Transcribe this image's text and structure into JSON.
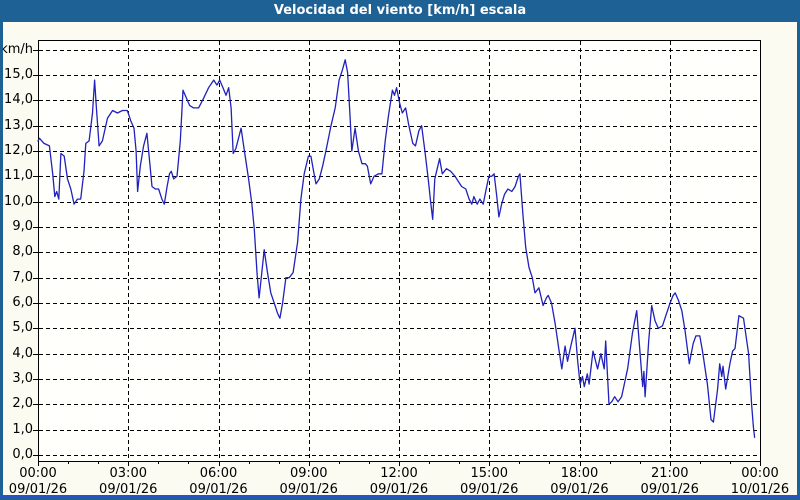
{
  "window": {
    "title": "Velocidad del viento [km/h] escala"
  },
  "colors": {
    "titlebar": "#1e6195",
    "frame": "#1e6195",
    "bottom_accent": "#2c50c8",
    "page_bg": "#fbfbf1",
    "plot_bg": "#fffffb",
    "grid": "#000000",
    "line": "#2121bd"
  },
  "chart_data": {
    "type": "line",
    "title": "Velocidad del viento [km/h] escala",
    "unit_label": "km/h",
    "xlabel": "",
    "ylabel": "km/h",
    "xlim": [
      0,
      24
    ],
    "ylim": [
      0,
      16
    ],
    "grid": "dashed",
    "legend": "none",
    "x_minor_tick_hours": 1,
    "y_ticks": [
      {
        "value": 16,
        "label": "km/h"
      },
      {
        "value": 15,
        "label": "15,0"
      },
      {
        "value": 14,
        "label": "14,0"
      },
      {
        "value": 13,
        "label": "13,0"
      },
      {
        "value": 12,
        "label": "12,0"
      },
      {
        "value": 11,
        "label": "11,0"
      },
      {
        "value": 10,
        "label": "10,0"
      },
      {
        "value": 9,
        "label": "9,0"
      },
      {
        "value": 8,
        "label": "8,0"
      },
      {
        "value": 7,
        "label": "7,0"
      },
      {
        "value": 6,
        "label": "6,0"
      },
      {
        "value": 5,
        "label": "5,0"
      },
      {
        "value": 4,
        "label": "4,0"
      },
      {
        "value": 3,
        "label": "3,0"
      },
      {
        "value": 2,
        "label": "2,0"
      },
      {
        "value": 1,
        "label": "1,0"
      },
      {
        "value": 0,
        "label": "0,0"
      }
    ],
    "x_ticks": [
      {
        "hour": 0,
        "time": "00:00",
        "date": "09/01/26"
      },
      {
        "hour": 3,
        "time": "03:00",
        "date": "09/01/26"
      },
      {
        "hour": 6,
        "time": "06:00",
        "date": "09/01/26"
      },
      {
        "hour": 9,
        "time": "09:00",
        "date": "09/01/26"
      },
      {
        "hour": 12,
        "time": "12:00",
        "date": "09/01/26"
      },
      {
        "hour": 15,
        "time": "15:00",
        "date": "09/01/26"
      },
      {
        "hour": 18,
        "time": "18:00",
        "date": "09/01/26"
      },
      {
        "hour": 21,
        "time": "21:00",
        "date": "09/01/26"
      },
      {
        "hour": 24,
        "time": "00:00",
        "date": "10/01/26"
      }
    ],
    "series": [
      {
        "name": "Velocidad del viento",
        "color": "#2121bd",
        "points": [
          [
            0,
            12.4
          ],
          [
            0.05,
            12.5
          ],
          [
            0.2,
            12.3
          ],
          [
            0.38,
            12.2
          ],
          [
            0.49,
            11.1
          ],
          [
            0.56,
            10.2
          ],
          [
            0.62,
            10.4
          ],
          [
            0.69,
            10.1
          ],
          [
            0.76,
            11.9
          ],
          [
            0.87,
            11.8
          ],
          [
            0.98,
            10.9
          ],
          [
            1.09,
            10.5
          ],
          [
            1.2,
            9.9
          ],
          [
            1.31,
            10.1
          ],
          [
            1.42,
            10.1
          ],
          [
            1.53,
            11.2
          ],
          [
            1.59,
            12.3
          ],
          [
            1.7,
            12.4
          ],
          [
            1.81,
            13.5
          ],
          [
            1.88,
            14.8
          ],
          [
            1.94,
            13.7
          ],
          [
            2.03,
            12.2
          ],
          [
            2.14,
            12.4
          ],
          [
            2.31,
            13.3
          ],
          [
            2.48,
            13.6
          ],
          [
            2.64,
            13.5
          ],
          [
            2.81,
            13.6
          ],
          [
            2.97,
            13.6
          ],
          [
            3.08,
            13.2
          ],
          [
            3.19,
            12.9
          ],
          [
            3.26,
            12.0
          ],
          [
            3.31,
            10.4
          ],
          [
            3.4,
            11.4
          ],
          [
            3.51,
            12.2
          ],
          [
            3.62,
            12.7
          ],
          [
            3.71,
            11.6
          ],
          [
            3.79,
            10.6
          ],
          [
            3.9,
            10.5
          ],
          [
            4.01,
            10.5
          ],
          [
            4.12,
            10.1
          ],
          [
            4.2,
            9.9
          ],
          [
            4.29,
            10.6
          ],
          [
            4.37,
            11.1
          ],
          [
            4.43,
            11.2
          ],
          [
            4.51,
            10.9
          ],
          [
            4.62,
            11.0
          ],
          [
            4.73,
            12.4
          ],
          [
            4.82,
            14.4
          ],
          [
            4.93,
            14.1
          ],
          [
            5.04,
            13.8
          ],
          [
            5.17,
            13.7
          ],
          [
            5.34,
            13.7
          ],
          [
            5.51,
            14.1
          ],
          [
            5.67,
            14.5
          ],
          [
            5.84,
            14.8
          ],
          [
            5.95,
            14.6
          ],
          [
            6.04,
            14.8
          ],
          [
            6.15,
            14.5
          ],
          [
            6.25,
            14.2
          ],
          [
            6.34,
            14.5
          ],
          [
            6.42,
            13.7
          ],
          [
            6.49,
            11.9
          ],
          [
            6.58,
            12.1
          ],
          [
            6.75,
            12.9
          ],
          [
            6.86,
            12.0
          ],
          [
            7.0,
            10.9
          ],
          [
            7.11,
            9.9
          ],
          [
            7.19,
            8.9
          ],
          [
            7.28,
            7.2
          ],
          [
            7.35,
            6.2
          ],
          [
            7.44,
            7.2
          ],
          [
            7.52,
            8.1
          ],
          [
            7.63,
            7.2
          ],
          [
            7.74,
            6.4
          ],
          [
            7.85,
            6.0
          ],
          [
            7.96,
            5.6
          ],
          [
            8.04,
            5.4
          ],
          [
            8.13,
            6.0
          ],
          [
            8.24,
            7.0
          ],
          [
            8.35,
            7.0
          ],
          [
            8.48,
            7.2
          ],
          [
            8.63,
            8.4
          ],
          [
            8.74,
            10.1
          ],
          [
            8.85,
            11.1
          ],
          [
            8.99,
            11.8
          ],
          [
            9.07,
            11.8
          ],
          [
            9.16,
            11.2
          ],
          [
            9.24,
            10.7
          ],
          [
            9.35,
            10.9
          ],
          [
            9.46,
            11.4
          ],
          [
            9.57,
            12.0
          ],
          [
            9.74,
            13.0
          ],
          [
            9.88,
            13.7
          ],
          [
            10.01,
            14.8
          ],
          [
            10.12,
            15.2
          ],
          [
            10.21,
            15.6
          ],
          [
            10.29,
            15.1
          ],
          [
            10.37,
            13.4
          ],
          [
            10.43,
            12.0
          ],
          [
            10.54,
            12.9
          ],
          [
            10.65,
            12.0
          ],
          [
            10.77,
            11.5
          ],
          [
            10.88,
            11.5
          ],
          [
            10.95,
            11.4
          ],
          [
            11.06,
            10.7
          ],
          [
            11.17,
            11.0
          ],
          [
            11.32,
            11.1
          ],
          [
            11.43,
            11.1
          ],
          [
            11.54,
            12.4
          ],
          [
            11.65,
            13.4
          ],
          [
            11.78,
            14.4
          ],
          [
            11.85,
            14.2
          ],
          [
            11.92,
            14.5
          ],
          [
            12.02,
            13.9
          ],
          [
            12.11,
            13.5
          ],
          [
            12.22,
            13.7
          ],
          [
            12.33,
            13.0
          ],
          [
            12.46,
            12.3
          ],
          [
            12.55,
            12.2
          ],
          [
            12.66,
            12.8
          ],
          [
            12.75,
            13.0
          ],
          [
            12.86,
            12.0
          ],
          [
            12.97,
            10.9
          ],
          [
            13.06,
            9.9
          ],
          [
            13.12,
            9.3
          ],
          [
            13.19,
            10.9
          ],
          [
            13.25,
            11.2
          ],
          [
            13.35,
            11.7
          ],
          [
            13.44,
            11.1
          ],
          [
            13.58,
            11.3
          ],
          [
            13.72,
            11.2
          ],
          [
            13.86,
            11.0
          ],
          [
            13.97,
            10.8
          ],
          [
            14.08,
            10.6
          ],
          [
            14.22,
            10.5
          ],
          [
            14.33,
            10.1
          ],
          [
            14.42,
            9.9
          ],
          [
            14.49,
            10.2
          ],
          [
            14.6,
            9.9
          ],
          [
            14.69,
            10.1
          ],
          [
            14.8,
            9.9
          ],
          [
            14.9,
            10.5
          ],
          [
            14.99,
            11.0
          ],
          [
            15.08,
            11.0
          ],
          [
            15.16,
            11.1
          ],
          [
            15.25,
            10.2
          ],
          [
            15.32,
            9.4
          ],
          [
            15.41,
            9.9
          ],
          [
            15.51,
            10.3
          ],
          [
            15.62,
            10.5
          ],
          [
            15.75,
            10.4
          ],
          [
            15.86,
            10.6
          ],
          [
            15.97,
            11.0
          ],
          [
            16.02,
            11.1
          ],
          [
            16.12,
            9.5
          ],
          [
            16.21,
            8.2
          ],
          [
            16.32,
            7.4
          ],
          [
            16.43,
            7.0
          ],
          [
            16.52,
            6.4
          ],
          [
            16.65,
            6.6
          ],
          [
            16.79,
            5.9
          ],
          [
            16.9,
            6.2
          ],
          [
            16.96,
            6.3
          ],
          [
            17.07,
            6.0
          ],
          [
            17.19,
            5.2
          ],
          [
            17.3,
            4.3
          ],
          [
            17.41,
            3.4
          ],
          [
            17.52,
            4.3
          ],
          [
            17.6,
            3.7
          ],
          [
            17.71,
            4.3
          ],
          [
            17.85,
            5.0
          ],
          [
            17.94,
            3.7
          ],
          [
            18.02,
            2.8
          ],
          [
            18.1,
            3.1
          ],
          [
            18.16,
            2.7
          ],
          [
            18.26,
            3.2
          ],
          [
            18.32,
            2.8
          ],
          [
            18.45,
            4.1
          ],
          [
            18.6,
            3.4
          ],
          [
            18.71,
            4.0
          ],
          [
            18.82,
            3.4
          ],
          [
            18.87,
            4.5
          ],
          [
            18.98,
            2.0
          ],
          [
            19.07,
            2.1
          ],
          [
            19.17,
            2.3
          ],
          [
            19.28,
            2.1
          ],
          [
            19.4,
            2.3
          ],
          [
            19.51,
            2.9
          ],
          [
            19.6,
            3.4
          ],
          [
            19.76,
            4.8
          ],
          [
            19.9,
            5.7
          ],
          [
            20.1,
            2.7
          ],
          [
            20.14,
            3.3
          ],
          [
            20.18,
            2.3
          ],
          [
            20.3,
            4.5
          ],
          [
            20.4,
            5.9
          ],
          [
            20.51,
            5.3
          ],
          [
            20.62,
            5.0
          ],
          [
            20.76,
            5.1
          ],
          [
            20.87,
            5.5
          ],
          [
            21.01,
            6.0
          ],
          [
            21.11,
            6.3
          ],
          [
            21.18,
            6.4
          ],
          [
            21.29,
            6.1
          ],
          [
            21.4,
            5.7
          ],
          [
            21.51,
            4.9
          ],
          [
            21.65,
            3.6
          ],
          [
            21.78,
            4.4
          ],
          [
            21.87,
            4.7
          ],
          [
            22.0,
            4.7
          ],
          [
            22.09,
            4.1
          ],
          [
            22.25,
            2.8
          ],
          [
            22.37,
            1.4
          ],
          [
            22.45,
            1.3
          ],
          [
            22.59,
            2.6
          ],
          [
            22.66,
            3.6
          ],
          [
            22.73,
            3.1
          ],
          [
            22.77,
            3.5
          ],
          [
            22.86,
            2.6
          ],
          [
            23.0,
            3.6
          ],
          [
            23.09,
            4.1
          ],
          [
            23.17,
            4.2
          ],
          [
            23.3,
            5.5
          ],
          [
            23.45,
            5.4
          ],
          [
            23.62,
            4.0
          ],
          [
            23.72,
            2.0
          ],
          [
            23.78,
            1.1
          ],
          [
            23.82,
            0.7
          ]
        ]
      }
    ]
  }
}
